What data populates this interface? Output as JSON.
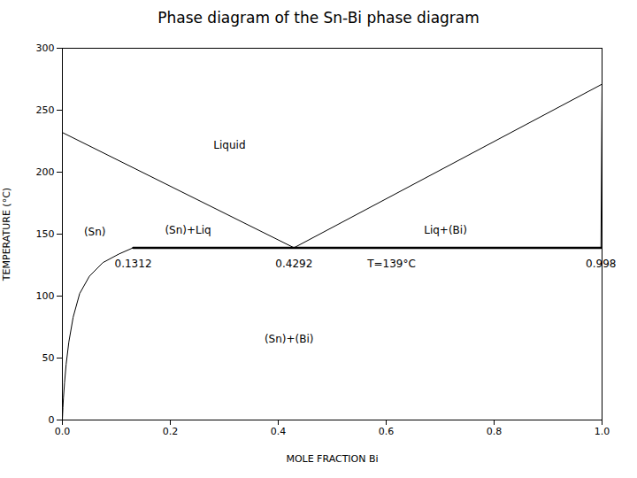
{
  "chart_data": {
    "type": "line",
    "title": "Phase diagram of the Sn-Bi phase diagram",
    "xlabel": "MOLE FRACTION Bi",
    "ylabel": "TEMPERATURE (°C)",
    "xlim": [
      0,
      1.0
    ],
    "ylim": [
      0,
      300
    ],
    "xticks": [
      {
        "value": 0,
        "label": "0.0"
      },
      0.2,
      0.4,
      0.6,
      0.8,
      {
        "value": 1.0,
        "label": "1.0"
      }
    ],
    "yticks": [
      0,
      50,
      100,
      150,
      200,
      250,
      300
    ],
    "grid": false,
    "series": [
      {
        "x": [
          0.0,
          0.4292
        ],
        "values": [
          232,
          139
        ],
        "color": "#000000",
        "line_style": "solid"
      },
      {
        "x": [
          0.4292,
          1.0
        ],
        "values": [
          139,
          271
        ],
        "color": "#000000",
        "line_style": "solid"
      },
      {
        "x": [
          0.0,
          0.0005,
          0.001,
          0.002,
          0.004,
          0.007,
          0.012,
          0.02,
          0.032,
          0.05,
          0.075,
          0.105,
          0.1312
        ],
        "values": [
          0,
          5,
          10,
          18,
          30,
          45,
          63,
          83,
          102,
          116,
          127,
          134,
          139
        ],
        "color": "#000000",
        "line_style": "solid"
      },
      {
        "x": [
          0.998,
          1.0
        ],
        "values": [
          139,
          271
        ],
        "color": "#000000",
        "line_style": "solid"
      },
      {
        "x": [
          0.1312,
          0.998
        ],
        "values": [
          139,
          139
        ],
        "color": "#000000",
        "line_style": "bold"
      }
    ],
    "annotations": [
      {
        "x": 0.28,
        "y": 222,
        "text": "Liquid"
      },
      {
        "x": 0.19,
        "y": 153,
        "text": "(Sn)+Liq"
      },
      {
        "x": 0.67,
        "y": 153,
        "text": "Liq+(Bi)"
      },
      {
        "x": 0.04,
        "y": 152,
        "text": "(Sn)"
      },
      {
        "x": 0.42,
        "y": 65,
        "text": "(Sn)+(Bi)"
      },
      {
        "x": 0.1312,
        "y": 131,
        "text": "0.1312"
      },
      {
        "x": 0.4292,
        "y": 131,
        "text": "0.4292"
      },
      {
        "x": 0.565,
        "y": 131,
        "text": "T=139°C"
      },
      {
        "x": 0.998,
        "y": 131,
        "text": "0.998"
      }
    ]
  }
}
